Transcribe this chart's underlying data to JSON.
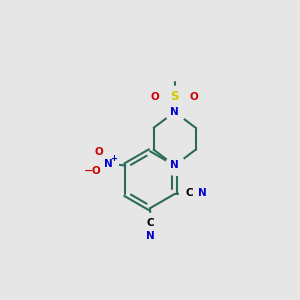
{
  "bg_color": "#e6e6e6",
  "bond_color": "#2a6b5a",
  "nitrogen_color": "#0000cc",
  "oxygen_color": "#cc0000",
  "sulfur_color": "#cccc00",
  "carbon_color": "#000000",
  "line_width": 1.5,
  "figsize": [
    3.0,
    3.0
  ],
  "dpi": 100,
  "xlim": [
    -1,
    11
  ],
  "ylim": [
    -1,
    11
  ]
}
